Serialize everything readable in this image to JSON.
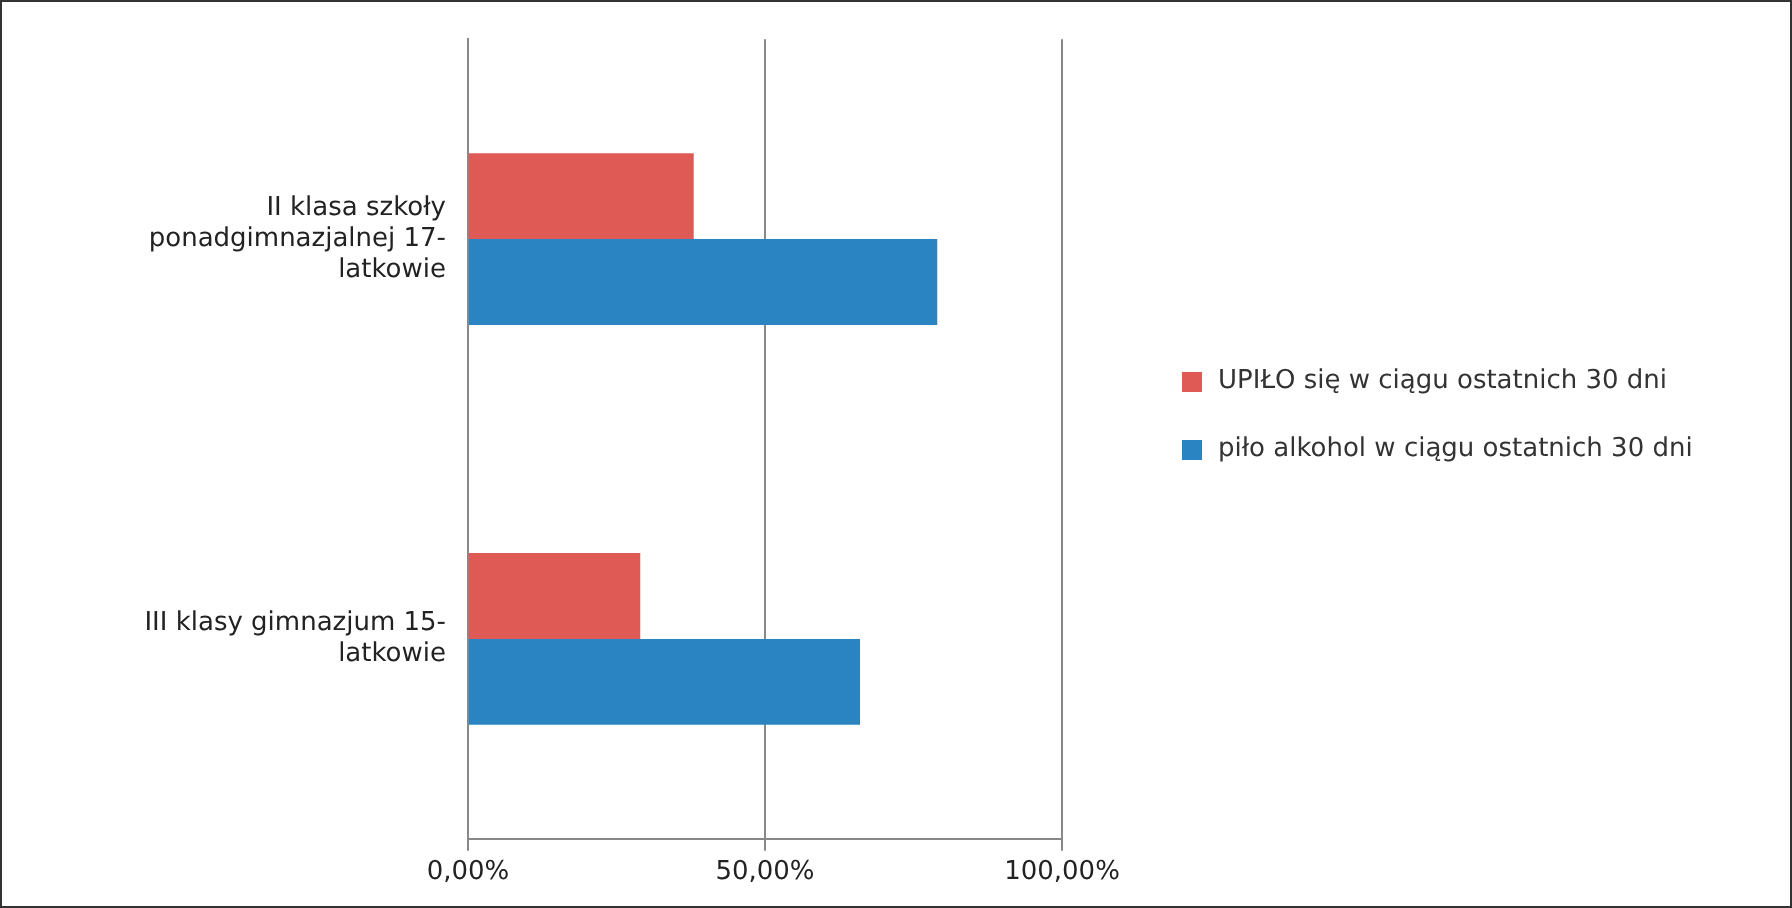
{
  "chart_data": {
    "type": "bar",
    "orientation": "horizontal",
    "categories": [
      "II klasa szkoły ponadgimnazjalnej 17- latkowie",
      "III klasy gimnazjum 15- latkowie"
    ],
    "series": [
      {
        "name": "UPIŁO się w ciągu ostatnich 30 dni",
        "color": "#e05a55",
        "values": [
          38,
          29
        ]
      },
      {
        "name": "piło alkohol w ciągu ostatnich 30 dni",
        "color": "#2a84c2",
        "values": [
          79,
          66
        ]
      }
    ],
    "xlim": [
      0,
      100
    ],
    "xticks": [
      {
        "value": 0,
        "label": "0,00%"
      },
      {
        "value": 50,
        "label": "50,00%"
      },
      {
        "value": 100,
        "label": "100,00%"
      }
    ],
    "grid": "x",
    "legend": "right"
  }
}
